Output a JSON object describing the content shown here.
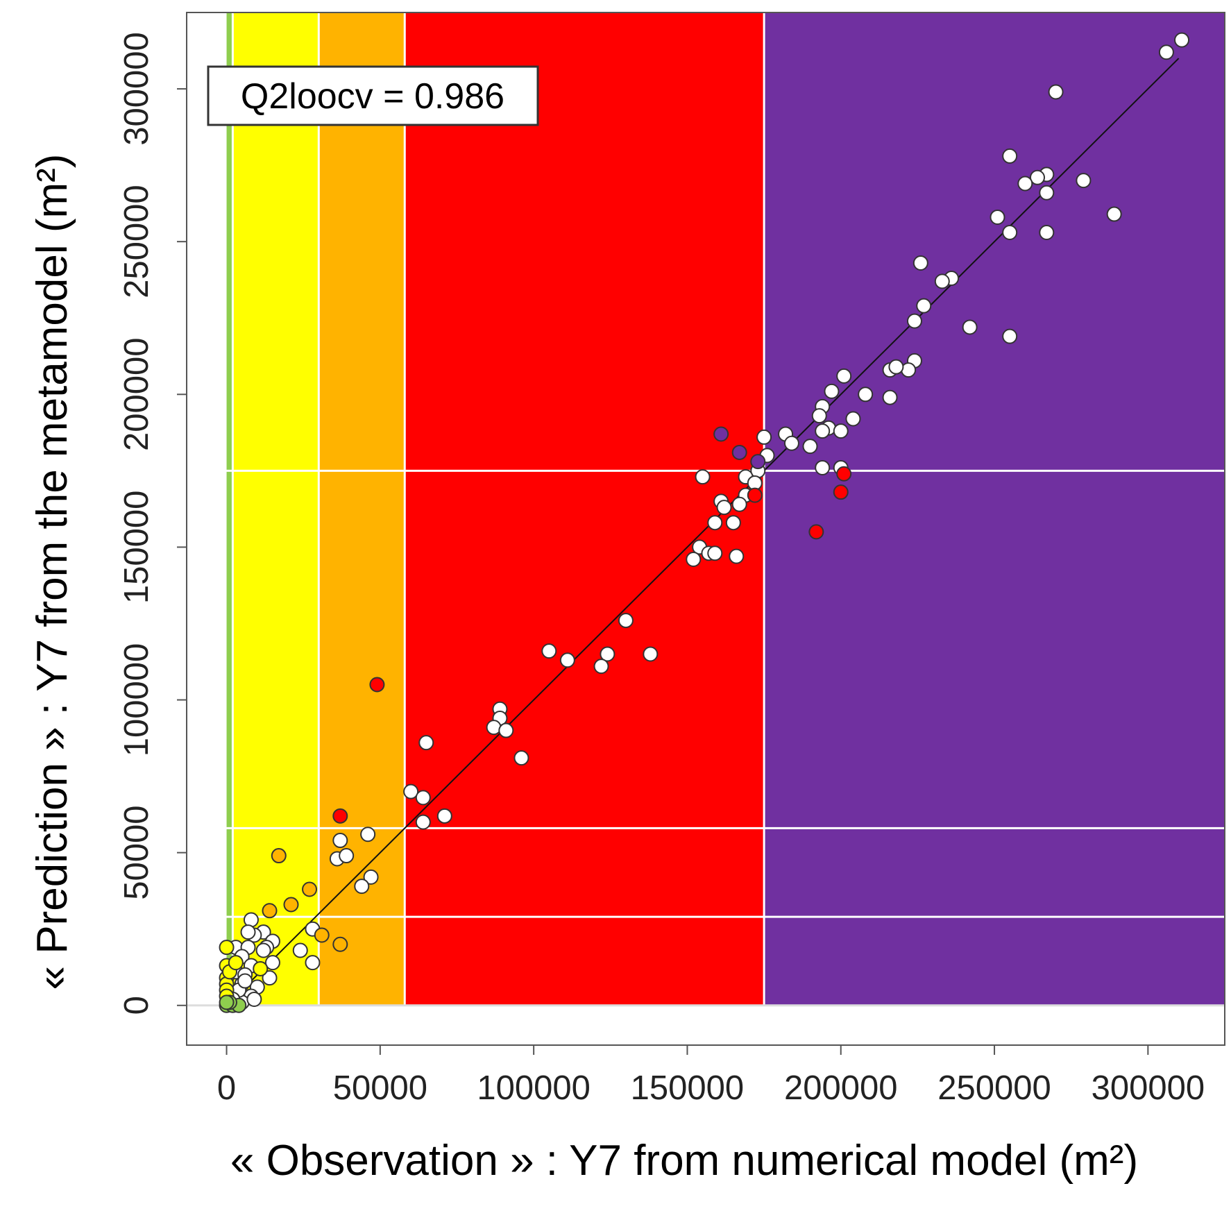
{
  "chart_data": {
    "type": "scatter",
    "title": "",
    "xlabel": "« Observation » : Y7 from numerical model (m²)",
    "ylabel": "« Prediction » : Y7 from the metamodel (m²)",
    "xlim": [
      -13000,
      325000
    ],
    "ylim": [
      -13000,
      325000
    ],
    "x_ticks": [
      0,
      50000,
      100000,
      150000,
      200000,
      250000,
      300000
    ],
    "y_ticks": [
      0,
      50000,
      100000,
      150000,
      200000,
      250000,
      300000
    ],
    "x_tick_labels": [
      "0",
      "50000",
      "100000",
      "150000",
      "200000",
      "250000",
      "300000"
    ],
    "y_tick_labels": [
      "0",
      "50000",
      "100000",
      "150000",
      "200000",
      "250000",
      "300000"
    ],
    "grid": false,
    "annotation": "Q2loocv = 0.986",
    "reference_line": {
      "x": [
        0,
        310000
      ],
      "y": [
        0,
        310000
      ]
    },
    "class_bands": {
      "boundaries": [
        0,
        2000,
        30000,
        58000,
        175000,
        325000
      ],
      "colors": [
        "#8fce4e",
        "#ffff00",
        "#ffb300",
        "#ff0000",
        "#7030a0"
      ],
      "horizontal_lines_y": [
        29000,
        58000,
        175000
      ]
    },
    "series": [
      {
        "color": "#ffffff",
        "points": [
          [
            311000,
            316000
          ],
          [
            306000,
            312000
          ],
          [
            270000,
            299000
          ],
          [
            255000,
            278000
          ],
          [
            279000,
            270000
          ],
          [
            267000,
            272000
          ],
          [
            264000,
            271000
          ],
          [
            260000,
            269000
          ],
          [
            267000,
            266000
          ],
          [
            289000,
            259000
          ],
          [
            251000,
            258000
          ],
          [
            255000,
            253000
          ],
          [
            267000,
            253000
          ],
          [
            226000,
            243000
          ],
          [
            236000,
            238000
          ],
          [
            233000,
            237000
          ],
          [
            227000,
            229000
          ],
          [
            224000,
            224000
          ],
          [
            242000,
            222000
          ],
          [
            255000,
            219000
          ],
          [
            224000,
            211000
          ],
          [
            216000,
            208000
          ],
          [
            222000,
            208000
          ],
          [
            218000,
            209000
          ],
          [
            201000,
            206000
          ],
          [
            208000,
            200000
          ],
          [
            197000,
            201000
          ],
          [
            216000,
            199000
          ],
          [
            194000,
            196000
          ],
          [
            193000,
            193000
          ],
          [
            204000,
            192000
          ],
          [
            196000,
            189000
          ],
          [
            194000,
            188000
          ],
          [
            200000,
            188000
          ],
          [
            175000,
            186000
          ],
          [
            182000,
            187000
          ],
          [
            184000,
            184000
          ],
          [
            190000,
            183000
          ],
          [
            176000,
            180000
          ],
          [
            194000,
            176000
          ],
          [
            200000,
            176000
          ],
          [
            173000,
            175000
          ],
          [
            155000,
            173000
          ],
          [
            169000,
            173000
          ],
          [
            172000,
            171000
          ],
          [
            169000,
            167000
          ],
          [
            161000,
            165000
          ],
          [
            162000,
            163000
          ],
          [
            167000,
            164000
          ],
          [
            165000,
            158000
          ],
          [
            159000,
            158000
          ],
          [
            154000,
            150000
          ],
          [
            157000,
            148000
          ],
          [
            159000,
            148000
          ],
          [
            152000,
            146000
          ],
          [
            166000,
            147000
          ],
          [
            130000,
            126000
          ],
          [
            105000,
            116000
          ],
          [
            111000,
            113000
          ],
          [
            124000,
            115000
          ],
          [
            138000,
            115000
          ],
          [
            122000,
            111000
          ],
          [
            89000,
            97000
          ],
          [
            89000,
            94000
          ],
          [
            87000,
            91000
          ],
          [
            91000,
            90000
          ],
          [
            96000,
            81000
          ],
          [
            65000,
            86000
          ],
          [
            60000,
            70000
          ],
          [
            64000,
            68000
          ],
          [
            71000,
            62000
          ],
          [
            64000,
            60000
          ],
          [
            46000,
            56000
          ],
          [
            37000,
            54000
          ],
          [
            36000,
            48000
          ],
          [
            39000,
            49000
          ],
          [
            47000,
            42000
          ],
          [
            44000,
            39000
          ],
          [
            8000,
            28000
          ],
          [
            12000,
            24000
          ],
          [
            9000,
            23000
          ],
          [
            7000,
            24000
          ],
          [
            15000,
            21000
          ],
          [
            13000,
            19000
          ],
          [
            3000,
            19000
          ],
          [
            7000,
            19000
          ],
          [
            28000,
            25000
          ],
          [
            24000,
            18000
          ],
          [
            28000,
            14000
          ],
          [
            15000,
            14000
          ],
          [
            12000,
            18000
          ],
          [
            5000,
            16000
          ],
          [
            8000,
            13000
          ],
          [
            3000,
            11000
          ],
          [
            6000,
            10000
          ],
          [
            14000,
            9000
          ],
          [
            10000,
            6000
          ],
          [
            5000,
            7000
          ],
          [
            8000,
            3000
          ],
          [
            3000,
            3000
          ],
          [
            5000,
            1000
          ],
          [
            4000,
            5000
          ],
          [
            2000,
            2000
          ],
          [
            6000,
            8000
          ],
          [
            9000,
            2000
          ]
        ]
      },
      {
        "color": "#ff0000",
        "points": [
          [
            49000,
            105000
          ],
          [
            37000,
            62000
          ],
          [
            172000,
            167000
          ],
          [
            192000,
            155000
          ],
          [
            200000,
            168000
          ],
          [
            201000,
            174000
          ]
        ]
      },
      {
        "color": "#7030a0",
        "points": [
          [
            161000,
            187000
          ],
          [
            167000,
            181000
          ],
          [
            173000,
            178000
          ]
        ]
      },
      {
        "color": "#ffb300",
        "points": [
          [
            17000,
            49000
          ],
          [
            27000,
            38000
          ],
          [
            21000,
            33000
          ],
          [
            14000,
            31000
          ],
          [
            37000,
            20000
          ],
          [
            31000,
            23000
          ]
        ]
      },
      {
        "color": "#ffff00",
        "points": [
          [
            0,
            19000
          ],
          [
            0,
            13000
          ],
          [
            0,
            9000
          ],
          [
            0,
            7000
          ],
          [
            0,
            5000
          ],
          [
            0,
            3000
          ],
          [
            1000,
            11000
          ],
          [
            11000,
            12000
          ],
          [
            3000,
            14000
          ]
        ]
      },
      {
        "color": "#8fce4e",
        "points": [
          [
            0,
            0
          ],
          [
            2000,
            0
          ],
          [
            4000,
            0
          ],
          [
            1000,
            1000
          ],
          [
            0,
            1000
          ]
        ]
      }
    ]
  }
}
